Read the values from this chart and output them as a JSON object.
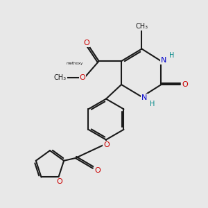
{
  "bg_color": "#e8e8e8",
  "bond_color": "#1a1a1a",
  "bond_width": 1.5,
  "N_color": "#0000cc",
  "O_color": "#cc0000",
  "H_color": "#008888",
  "C_color": "#1a1a1a",
  "figsize": [
    3.0,
    3.0
  ],
  "dpi": 100,
  "xlim": [
    0,
    10
  ],
  "ylim": [
    0,
    10
  ]
}
